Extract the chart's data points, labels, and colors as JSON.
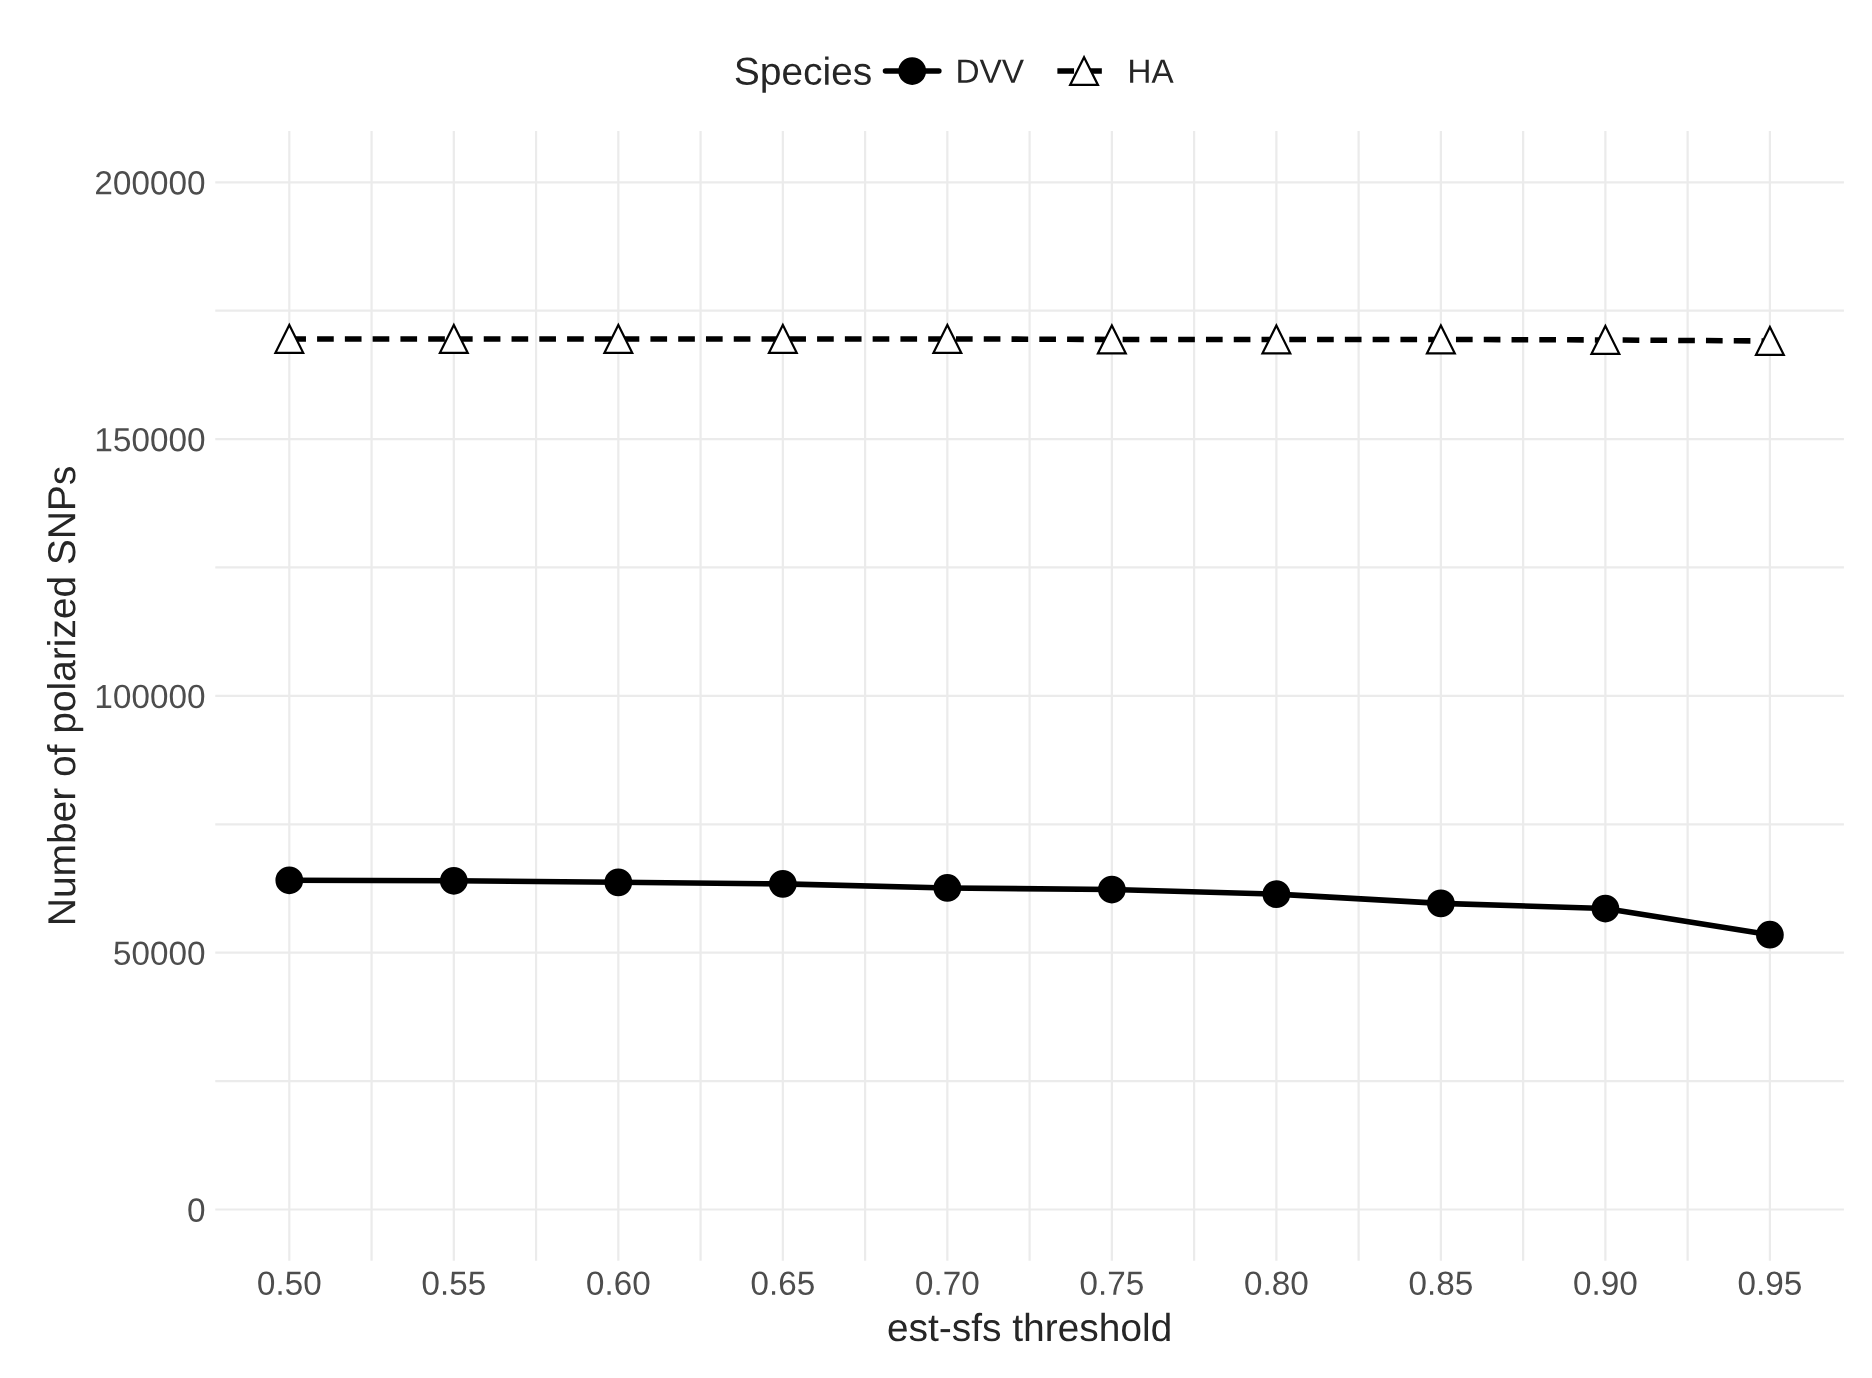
{
  "chart_data": {
    "type": "line",
    "xlabel": "est-sfs threshold",
    "ylabel": "Number of polarized SNPs",
    "legend_title": "Species",
    "x": [
      0.5,
      0.55,
      0.6,
      0.65,
      0.7,
      0.75,
      0.8,
      0.85,
      0.9,
      0.95
    ],
    "series": [
      {
        "name": "DVV",
        "color": "#000000",
        "marker": "circle",
        "line_style": "solid",
        "values": [
          64100,
          64000,
          63700,
          63400,
          62600,
          62300,
          61400,
          59600,
          58600,
          53500
        ]
      },
      {
        "name": "HA",
        "color": "#000000",
        "marker": "triangle",
        "line_style": "dashed",
        "values": [
          169500,
          169500,
          169500,
          169500,
          169500,
          169400,
          169400,
          169400,
          169300,
          169100
        ]
      }
    ],
    "xlim": [
      0.4775,
      0.9725
    ],
    "xticks": [
      {
        "value": 0.5,
        "label": "0.50"
      },
      {
        "value": 0.55,
        "label": "0.55"
      },
      {
        "value": 0.6,
        "label": "0.60"
      },
      {
        "value": 0.65,
        "label": "0.65"
      },
      {
        "value": 0.7,
        "label": "0.70"
      },
      {
        "value": 0.75,
        "label": "0.75"
      },
      {
        "value": 0.8,
        "label": "0.80"
      },
      {
        "value": 0.85,
        "label": "0.85"
      },
      {
        "value": 0.9,
        "label": "0.90"
      },
      {
        "value": 0.95,
        "label": "0.95"
      }
    ],
    "ylim": [
      -10000,
      210000
    ],
    "yticks": [
      0,
      50000,
      100000,
      150000,
      200000
    ],
    "grid": true,
    "legend": "top"
  }
}
